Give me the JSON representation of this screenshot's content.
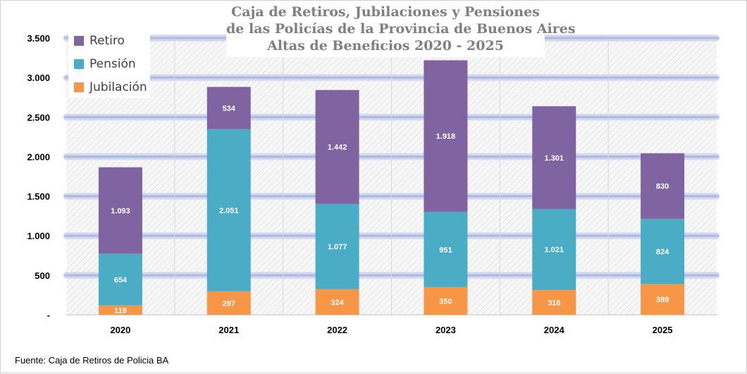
{
  "chart_data": {
    "type": "bar",
    "stacked": true,
    "title": [
      "Caja de Retiros, Jubilaciones y Pensiones",
      "de las Policías de la Provincia de Buenos Aires",
      "Altas de Beneficios 2020  - 2025"
    ],
    "categories": [
      "2020",
      "2021",
      "2022",
      "2023",
      "2024",
      "2025"
    ],
    "series": [
      {
        "name": "Jubilación",
        "color": "#f79646",
        "values": [
          119,
          297,
          324,
          350,
          316,
          389
        ],
        "labels": [
          "119",
          "297",
          "324",
          "350",
          "316",
          "389"
        ]
      },
      {
        "name": "Pensión",
        "color": "#4bacc6",
        "values": [
          654,
          2051,
          1077,
          951,
          1021,
          824
        ],
        "labels": [
          "654",
          "2.051",
          "1.077",
          "951",
          "1.021",
          "824"
        ]
      },
      {
        "name": "Retiro",
        "color": "#8064a2",
        "values": [
          1093,
          534,
          1442,
          1918,
          1301,
          830
        ],
        "labels": [
          "1.093",
          "534",
          "1.442",
          "1.918",
          "1.301",
          "830"
        ]
      }
    ],
    "ylim": [
      0,
      3500
    ],
    "yticks": [
      0,
      500,
      1000,
      1500,
      2000,
      2500,
      3000,
      3500
    ],
    "ytick_labels": [
      "-",
      "500",
      "1.000",
      "1.500",
      "2.000",
      "2.500",
      "3.000",
      "3.500"
    ],
    "grid": true,
    "legend_position": "top-left",
    "legend_order": [
      "Retiro",
      "Pensión",
      "Jubilación"
    ]
  },
  "footer": {
    "source": "Fuente: Caja de Retiros de Policia BA"
  }
}
